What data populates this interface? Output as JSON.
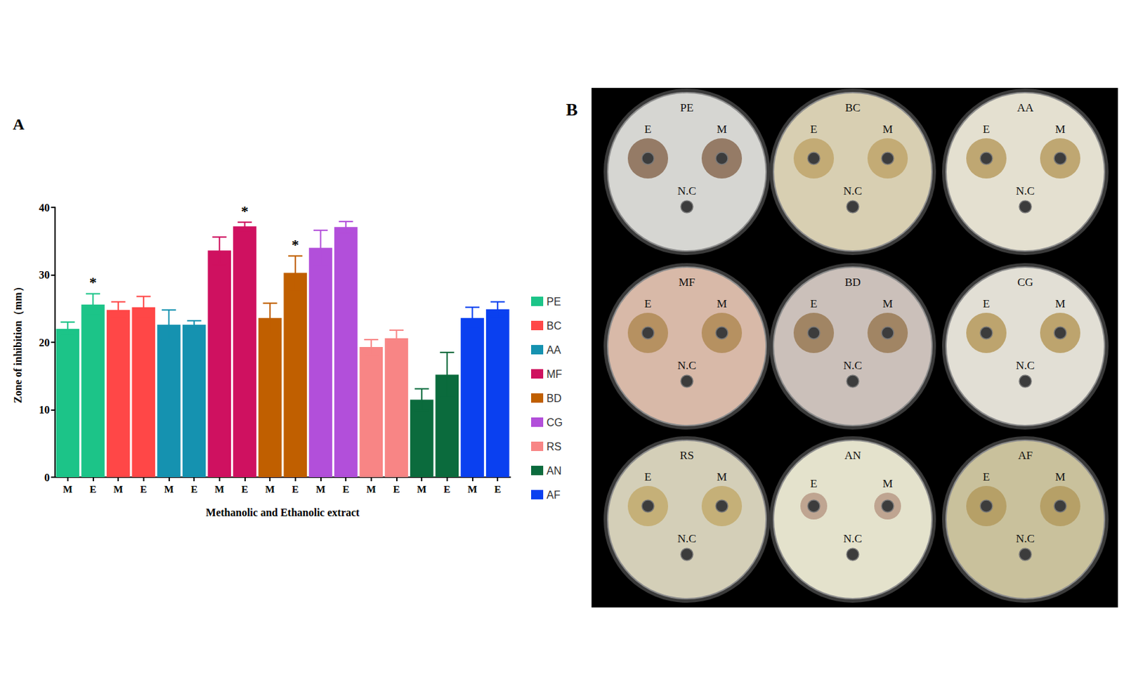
{
  "chart_data": {
    "type": "bar",
    "panel_label": "A",
    "x_label": "Methanolic and Ethanolic extract",
    "y_label": "Zone of inhibition（mm）",
    "categories": [
      "M",
      "E",
      "M",
      "E",
      "M",
      "E",
      "M",
      "E",
      "M",
      "E",
      "M",
      "E",
      "M",
      "E",
      "M",
      "E",
      "M",
      "E"
    ],
    "ylim": [
      0,
      40
    ],
    "yticks": [
      0,
      10,
      20,
      30,
      40
    ],
    "grid": false,
    "legend": "right",
    "series": [
      {
        "name": "PE",
        "color": "#1cc488",
        "values": [
          22.0,
          25.6,
          null,
          null,
          null,
          null,
          null,
          null,
          null,
          null,
          null,
          null,
          null,
          null,
          null,
          null,
          null,
          null
        ],
        "errors": [
          1.0,
          1.6,
          null,
          null,
          null,
          null,
          null,
          null,
          null,
          null,
          null,
          null,
          null,
          null,
          null,
          null,
          null,
          null
        ]
      },
      {
        "name": "BC",
        "color": "#ff4747",
        "values": [
          null,
          null,
          24.8,
          25.2,
          null,
          null,
          null,
          null,
          null,
          null,
          null,
          null,
          null,
          null,
          null,
          null,
          null,
          null
        ],
        "errors": [
          null,
          null,
          1.2,
          1.6,
          null,
          null,
          null,
          null,
          null,
          null,
          null,
          null,
          null,
          null,
          null,
          null,
          null,
          null
        ]
      },
      {
        "name": "AA",
        "color": "#1592b0",
        "values": [
          null,
          null,
          null,
          null,
          22.6,
          22.6,
          null,
          null,
          null,
          null,
          null,
          null,
          null,
          null,
          null,
          null,
          null,
          null
        ],
        "errors": [
          null,
          null,
          null,
          null,
          2.2,
          0.6,
          null,
          null,
          null,
          null,
          null,
          null,
          null,
          null,
          null,
          null,
          null,
          null
        ]
      },
      {
        "name": "MF",
        "color": "#cf1160",
        "values": [
          null,
          null,
          null,
          null,
          null,
          null,
          33.6,
          37.2,
          null,
          null,
          null,
          null,
          null,
          null,
          null,
          null,
          null,
          null
        ],
        "errors": [
          null,
          null,
          null,
          null,
          null,
          null,
          2.0,
          0.6,
          null,
          null,
          null,
          null,
          null,
          null,
          null,
          null,
          null,
          null
        ]
      },
      {
        "name": "BD",
        "color": "#c05f00",
        "values": [
          null,
          null,
          null,
          null,
          null,
          null,
          null,
          null,
          23.6,
          30.3,
          null,
          null,
          null,
          null,
          null,
          null,
          null,
          null
        ],
        "errors": [
          null,
          null,
          null,
          null,
          null,
          null,
          null,
          null,
          2.2,
          2.5,
          null,
          null,
          null,
          null,
          null,
          null,
          null,
          null
        ]
      },
      {
        "name": "CG",
        "color": "#b24fda",
        "values": [
          null,
          null,
          null,
          null,
          null,
          null,
          null,
          null,
          null,
          null,
          34.0,
          37.1,
          null,
          null,
          null,
          null,
          null,
          null
        ],
        "errors": [
          null,
          null,
          null,
          null,
          null,
          null,
          null,
          null,
          null,
          null,
          2.6,
          0.8,
          null,
          null,
          null,
          null,
          null,
          null
        ]
      },
      {
        "name": "RS",
        "color": "#f88585",
        "values": [
          null,
          null,
          null,
          null,
          null,
          null,
          null,
          null,
          null,
          null,
          null,
          null,
          19.3,
          20.6,
          null,
          null,
          null,
          null
        ],
        "errors": [
          null,
          null,
          null,
          null,
          null,
          null,
          null,
          null,
          null,
          null,
          null,
          null,
          1.1,
          1.2,
          null,
          null,
          null,
          null
        ]
      },
      {
        "name": "AN",
        "color": "#0b6b3d",
        "values": [
          null,
          null,
          null,
          null,
          null,
          null,
          null,
          null,
          null,
          null,
          null,
          null,
          null,
          null,
          11.5,
          15.2,
          null,
          null
        ],
        "errors": [
          null,
          null,
          null,
          null,
          null,
          null,
          null,
          null,
          null,
          null,
          null,
          null,
          null,
          null,
          1.6,
          3.3,
          null,
          null
        ]
      },
      {
        "name": "AF",
        "color": "#0a40f0",
        "values": [
          null,
          null,
          null,
          null,
          null,
          null,
          null,
          null,
          null,
          null,
          null,
          null,
          null,
          null,
          null,
          null,
          23.6,
          24.9
        ],
        "errors": [
          null,
          null,
          null,
          null,
          null,
          null,
          null,
          null,
          null,
          null,
          null,
          null,
          null,
          null,
          null,
          null,
          1.6,
          1.1
        ]
      }
    ],
    "annotations": [
      {
        "series": "PE",
        "index": 1,
        "text": "*"
      },
      {
        "series": "MF",
        "index": 7,
        "text": "*"
      },
      {
        "series": "BD",
        "index": 9,
        "text": "*"
      }
    ]
  },
  "photo": {
    "panel_label": "B",
    "plates": [
      {
        "name": "PE",
        "wells": [
          "E",
          "M",
          "N.C"
        ]
      },
      {
        "name": "BC",
        "wells": [
          "E",
          "M",
          "N.C"
        ]
      },
      {
        "name": "AA",
        "wells": [
          "E",
          "M",
          "N.C"
        ]
      },
      {
        "name": "MF",
        "wells": [
          "E",
          "M",
          "N.C"
        ]
      },
      {
        "name": "BD",
        "wells": [
          "E",
          "M",
          "N.C"
        ]
      },
      {
        "name": "CG",
        "wells": [
          "E",
          "M",
          "N.C"
        ]
      },
      {
        "name": "RS",
        "wells": [
          "E",
          "M",
          "N.C"
        ]
      },
      {
        "name": "AN",
        "wells": [
          "E",
          "M",
          "N.C"
        ]
      },
      {
        "name": "AF",
        "wells": [
          "E",
          "M",
          "N.C"
        ]
      }
    ]
  }
}
